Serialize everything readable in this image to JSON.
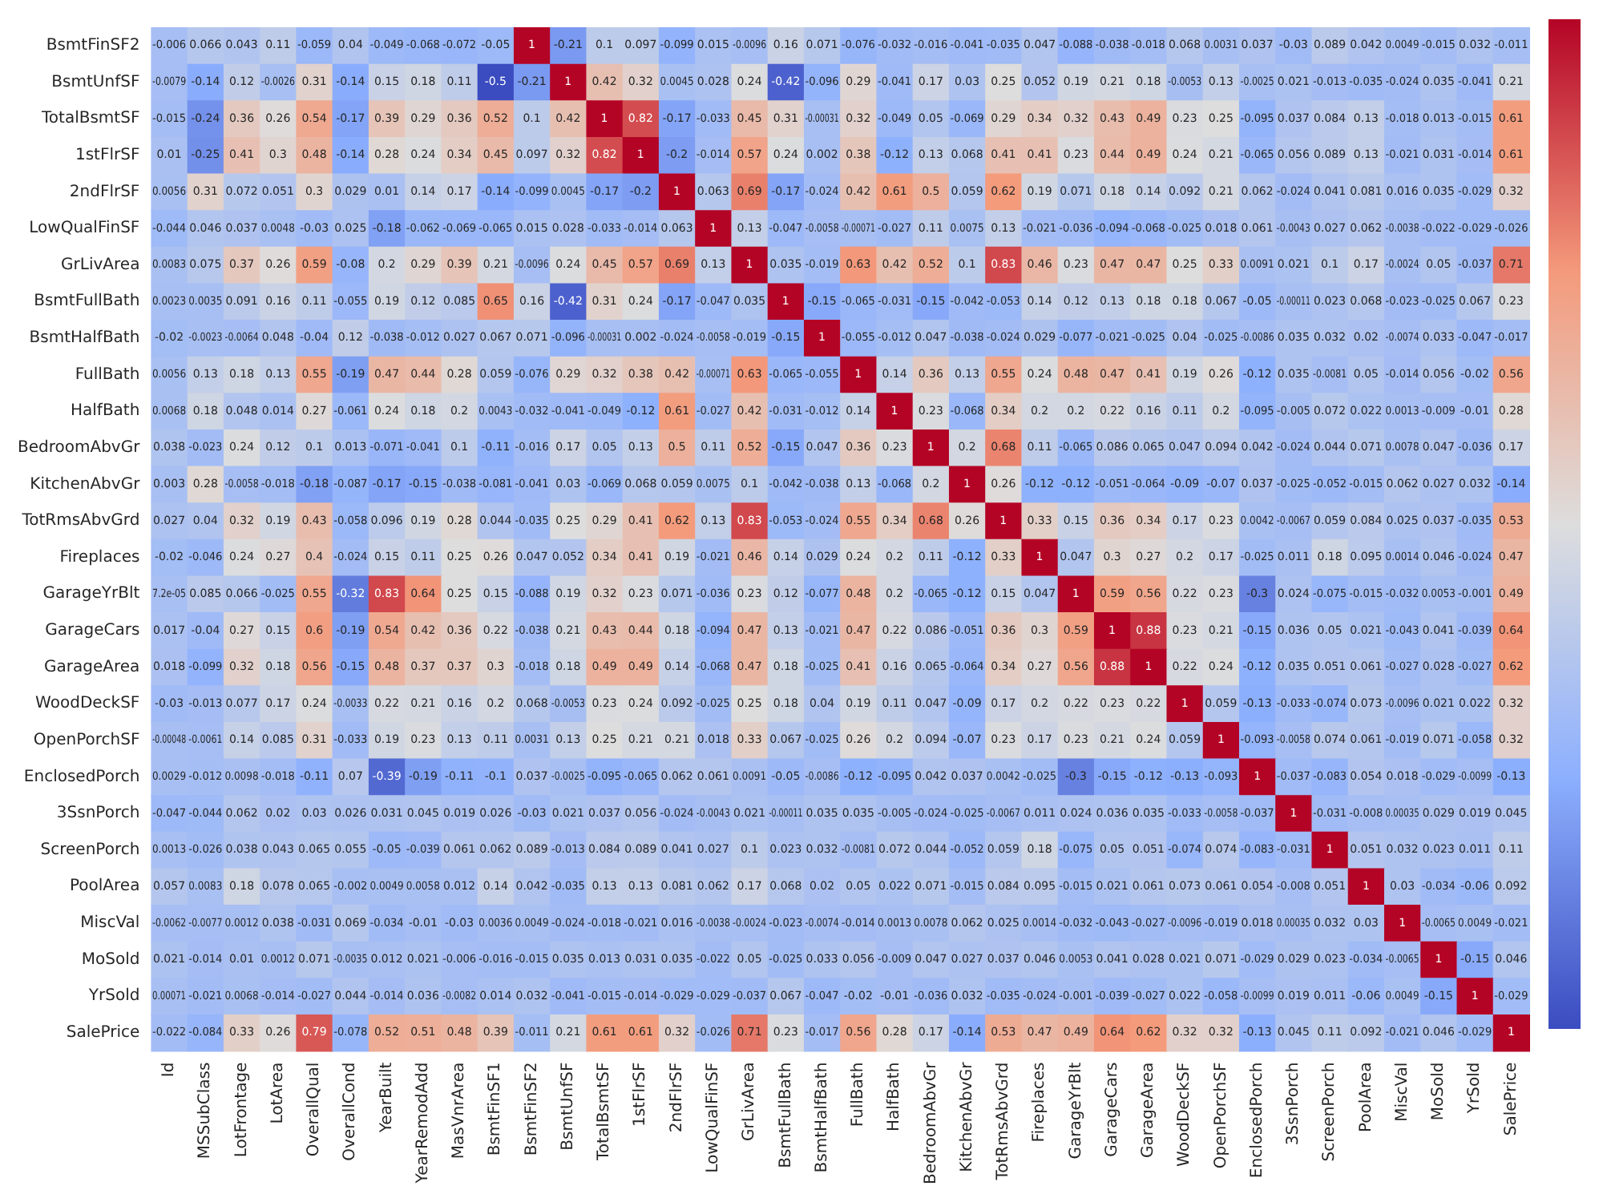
{
  "chart_data": {
    "type": "heatmap",
    "data_labels": true,
    "categories": [
      "Id",
      "MSSubClass",
      "LotFrontage",
      "LotArea",
      "OverallQual",
      "OverallCond",
      "YearBuilt",
      "YearRemodAdd",
      "MasVnrArea",
      "BsmtFinSF1",
      "BsmtFinSF2",
      "BsmtUnfSF",
      "TotalBsmtSF",
      "1stFlrSF",
      "2ndFlrSF",
      "LowQualFinSF",
      "GrLivArea",
      "BsmtFullBath",
      "BsmtHalfBath",
      "FullBath",
      "HalfBath",
      "BedroomAbvGr",
      "KitchenAbvGr",
      "TotRmsAbvGrd",
      "Fireplaces",
      "GarageYrBlt",
      "GarageCars",
      "GarageArea",
      "WoodDeckSF",
      "OpenPorchSF",
      "EnclosedPorch",
      "3SsnPorch",
      "ScreenPorch",
      "PoolArea",
      "MiscVal",
      "MoSold",
      "YrSold",
      "SalePrice"
    ],
    "y_categories": [
      "BsmtFinSF2",
      "BsmtUnfSF",
      "TotalBsmtSF",
      "1stFlrSF",
      "2ndFlrSF",
      "LowQualFinSF",
      "GrLivArea",
      "BsmtFullBath",
      "BsmtHalfBath",
      "FullBath",
      "HalfBath",
      "BedroomAbvGr",
      "KitchenAbvGr",
      "TotRmsAbvGrd",
      "Fireplaces",
      "GarageYrBlt",
      "GarageCars",
      "GarageArea",
      "WoodDeckSF",
      "OpenPorchSF",
      "EnclosedPorch",
      "3SsnPorch",
      "ScreenPorch",
      "PoolArea",
      "MiscVal",
      "MoSold",
      "YrSold",
      "SalePrice"
    ],
    "cells": [
      [
        -0.006,
        0.066,
        0.043,
        0.11,
        -0.059,
        0.04,
        -0.049,
        -0.068,
        -0.072,
        -0.05,
        1,
        -0.21,
        0.1,
        0.097,
        -0.099,
        0.015,
        -0.0096,
        0.16,
        0.071,
        -0.076,
        -0.032,
        -0.016,
        -0.041,
        -0.035,
        0.047,
        -0.088,
        -0.038,
        -0.018,
        0.068,
        0.0031,
        0.037,
        -0.03,
        0.089,
        0.042,
        0.0049,
        -0.015,
        0.032,
        -0.011
      ],
      [
        -0.0079,
        -0.14,
        0.12,
        -0.0026,
        0.31,
        -0.14,
        0.15,
        0.18,
        0.11,
        -0.5,
        -0.21,
        1,
        0.42,
        0.32,
        0.0045,
        0.028,
        0.24,
        -0.42,
        -0.096,
        0.29,
        -0.041,
        0.17,
        0.03,
        0.25,
        0.052,
        0.19,
        0.21,
        0.18,
        -0.0053,
        0.13,
        -0.0025,
        0.021,
        -0.013,
        -0.035,
        -0.024,
        0.035,
        -0.041,
        0.21
      ],
      [
        -0.015,
        -0.24,
        0.36,
        0.26,
        0.54,
        -0.17,
        0.39,
        0.29,
        0.36,
        0.52,
        0.1,
        0.42,
        1,
        0.82,
        -0.17,
        -0.033,
        0.45,
        0.31,
        -0.00031,
        0.32,
        -0.049,
        0.05,
        -0.069,
        0.29,
        0.34,
        0.32,
        0.43,
        0.49,
        0.23,
        0.25,
        -0.095,
        0.037,
        0.084,
        0.13,
        -0.018,
        0.013,
        -0.015,
        0.61
      ],
      [
        0.01,
        -0.25,
        0.41,
        0.3,
        0.48,
        -0.14,
        0.28,
        0.24,
        0.34,
        0.45,
        0.097,
        0.32,
        0.82,
        1,
        -0.2,
        -0.014,
        0.57,
        0.24,
        0.002,
        0.38,
        -0.12,
        0.13,
        0.068,
        0.41,
        0.41,
        0.23,
        0.44,
        0.49,
        0.24,
        0.21,
        -0.065,
        0.056,
        0.089,
        0.13,
        -0.021,
        0.031,
        -0.014,
        0.61
      ],
      [
        0.0056,
        0.31,
        0.072,
        0.051,
        0.3,
        0.029,
        0.01,
        0.14,
        0.17,
        -0.14,
        -0.099,
        0.0045,
        -0.17,
        -0.2,
        1,
        0.063,
        0.69,
        -0.17,
        -0.024,
        0.42,
        0.61,
        0.5,
        0.059,
        0.62,
        0.19,
        0.071,
        0.18,
        0.14,
        0.092,
        0.21,
        0.062,
        -0.024,
        0.041,
        0.081,
        0.016,
        0.035,
        -0.029,
        0.32
      ],
      [
        -0.044,
        0.046,
        0.037,
        0.0048,
        -0.03,
        0.025,
        -0.18,
        -0.062,
        -0.069,
        -0.065,
        0.015,
        0.028,
        -0.033,
        -0.014,
        0.063,
        1,
        0.13,
        -0.047,
        -0.0058,
        -0.00071,
        -0.027,
        0.11,
        0.0075,
        0.13,
        -0.021,
        -0.036,
        -0.094,
        -0.068,
        -0.025,
        0.018,
        0.061,
        -0.0043,
        0.027,
        0.062,
        -0.0038,
        -0.022,
        -0.029,
        -0.026
      ],
      [
        0.0083,
        0.075,
        0.37,
        0.26,
        0.59,
        -0.08,
        0.2,
        0.29,
        0.39,
        0.21,
        -0.0096,
        0.24,
        0.45,
        0.57,
        0.69,
        0.13,
        1,
        0.035,
        -0.019,
        0.63,
        0.42,
        0.52,
        0.1,
        0.83,
        0.46,
        0.23,
        0.47,
        0.47,
        0.25,
        0.33,
        0.0091,
        0.021,
        0.1,
        0.17,
        -0.0024,
        0.05,
        -0.037,
        0.71
      ],
      [
        0.0023,
        0.0035,
        0.091,
        0.16,
        0.11,
        -0.055,
        0.19,
        0.12,
        0.085,
        0.65,
        0.16,
        -0.42,
        0.31,
        0.24,
        -0.17,
        -0.047,
        0.035,
        1,
        -0.15,
        -0.065,
        -0.031,
        -0.15,
        -0.042,
        -0.053,
        0.14,
        0.12,
        0.13,
        0.18,
        0.18,
        0.067,
        -0.05,
        -0.00011,
        0.023,
        0.068,
        -0.023,
        -0.025,
        0.067,
        0.23
      ],
      [
        -0.02,
        -0.0023,
        -0.0064,
        0.048,
        -0.04,
        0.12,
        -0.038,
        -0.012,
        0.027,
        0.067,
        0.071,
        -0.096,
        -0.00031,
        0.002,
        -0.024,
        -0.0058,
        -0.019,
        -0.15,
        1,
        -0.055,
        -0.012,
        0.047,
        -0.038,
        -0.024,
        0.029,
        -0.077,
        -0.021,
        -0.025,
        0.04,
        -0.025,
        -0.0086,
        0.035,
        0.032,
        0.02,
        -0.0074,
        0.033,
        -0.047,
        -0.017
      ],
      [
        0.0056,
        0.13,
        0.18,
        0.13,
        0.55,
        -0.19,
        0.47,
        0.44,
        0.28,
        0.059,
        -0.076,
        0.29,
        0.32,
        0.38,
        0.42,
        -0.00071,
        0.63,
        -0.065,
        -0.055,
        1,
        0.14,
        0.36,
        0.13,
        0.55,
        0.24,
        0.48,
        0.47,
        0.41,
        0.19,
        0.26,
        -0.12,
        0.035,
        -0.0081,
        0.05,
        -0.014,
        0.056,
        -0.02,
        0.56
      ],
      [
        0.0068,
        0.18,
        0.048,
        0.014,
        0.27,
        -0.061,
        0.24,
        0.18,
        0.2,
        0.0043,
        -0.032,
        -0.041,
        -0.049,
        -0.12,
        0.61,
        -0.027,
        0.42,
        -0.031,
        -0.012,
        0.14,
        1,
        0.23,
        -0.068,
        0.34,
        0.2,
        0.2,
        0.22,
        0.16,
        0.11,
        0.2,
        -0.095,
        -0.005,
        0.072,
        0.022,
        0.0013,
        -0.009,
        -0.01,
        0.28
      ],
      [
        0.038,
        -0.023,
        0.24,
        0.12,
        0.1,
        0.013,
        -0.071,
        -0.041,
        0.1,
        -0.11,
        -0.016,
        0.17,
        0.05,
        0.13,
        0.5,
        0.11,
        0.52,
        -0.15,
        0.047,
        0.36,
        0.23,
        1,
        0.2,
        0.68,
        0.11,
        -0.065,
        0.086,
        0.065,
        0.047,
        0.094,
        0.042,
        -0.024,
        0.044,
        0.071,
        0.0078,
        0.047,
        -0.036,
        0.17
      ],
      [
        0.003,
        0.28,
        -0.0058,
        -0.018,
        -0.18,
        -0.087,
        -0.17,
        -0.15,
        -0.038,
        -0.081,
        -0.041,
        0.03,
        -0.069,
        0.068,
        0.059,
        0.0075,
        0.1,
        -0.042,
        -0.038,
        0.13,
        -0.068,
        0.2,
        1,
        0.26,
        -0.12,
        -0.12,
        -0.051,
        -0.064,
        -0.09,
        -0.07,
        0.037,
        -0.025,
        -0.052,
        -0.015,
        0.062,
        0.027,
        0.032,
        -0.14
      ],
      [
        0.027,
        0.04,
        0.32,
        0.19,
        0.43,
        -0.058,
        0.096,
        0.19,
        0.28,
        0.044,
        -0.035,
        0.25,
        0.29,
        0.41,
        0.62,
        0.13,
        0.83,
        -0.053,
        -0.024,
        0.55,
        0.34,
        0.68,
        0.26,
        1,
        0.33,
        0.15,
        0.36,
        0.34,
        0.17,
        0.23,
        0.0042,
        -0.0067,
        0.059,
        0.084,
        0.025,
        0.037,
        -0.035,
        0.53
      ],
      [
        -0.02,
        -0.046,
        0.24,
        0.27,
        0.4,
        -0.024,
        0.15,
        0.11,
        0.25,
        0.26,
        0.047,
        0.052,
        0.34,
        0.41,
        0.19,
        -0.021,
        0.46,
        0.14,
        0.029,
        0.24,
        0.2,
        0.11,
        -0.12,
        0.33,
        1,
        0.047,
        0.3,
        0.27,
        0.2,
        0.17,
        -0.025,
        0.011,
        0.18,
        0.095,
        0.0014,
        0.046,
        -0.024,
        0.47
      ],
      [
        7.2e-05,
        0.085,
        0.066,
        -0.025,
        0.55,
        -0.32,
        0.83,
        0.64,
        0.25,
        0.15,
        -0.088,
        0.19,
        0.32,
        0.23,
        0.071,
        -0.036,
        0.23,
        0.12,
        -0.077,
        0.48,
        0.2,
        -0.065,
        -0.12,
        0.15,
        0.047,
        1,
        0.59,
        0.56,
        0.22,
        0.23,
        -0.3,
        0.024,
        -0.075,
        -0.015,
        -0.032,
        0.0053,
        -0.001,
        0.49
      ],
      [
        0.017,
        -0.04,
        0.27,
        0.15,
        0.6,
        -0.19,
        0.54,
        0.42,
        0.36,
        0.22,
        -0.038,
        0.21,
        0.43,
        0.44,
        0.18,
        -0.094,
        0.47,
        0.13,
        -0.021,
        0.47,
        0.22,
        0.086,
        -0.051,
        0.36,
        0.3,
        0.59,
        1,
        0.88,
        0.23,
        0.21,
        -0.15,
        0.036,
        0.05,
        0.021,
        -0.043,
        0.041,
        -0.039,
        0.64
      ],
      [
        0.018,
        -0.099,
        0.32,
        0.18,
        0.56,
        -0.15,
        0.48,
        0.37,
        0.37,
        0.3,
        -0.018,
        0.18,
        0.49,
        0.49,
        0.14,
        -0.068,
        0.47,
        0.18,
        -0.025,
        0.41,
        0.16,
        0.065,
        -0.064,
        0.34,
        0.27,
        0.56,
        0.88,
        1,
        0.22,
        0.24,
        -0.12,
        0.035,
        0.051,
        0.061,
        -0.027,
        0.028,
        -0.027,
        0.62
      ],
      [
        -0.03,
        -0.013,
        0.077,
        0.17,
        0.24,
        -0.0033,
        0.22,
        0.21,
        0.16,
        0.2,
        0.068,
        -0.0053,
        0.23,
        0.24,
        0.092,
        -0.025,
        0.25,
        0.18,
        0.04,
        0.19,
        0.11,
        0.047,
        -0.09,
        0.17,
        0.2,
        0.22,
        0.23,
        0.22,
        1,
        0.059,
        -0.13,
        -0.033,
        -0.074,
        0.073,
        -0.0096,
        0.021,
        0.022,
        0.32
      ],
      [
        -0.00048,
        -0.0061,
        0.14,
        0.085,
        0.31,
        -0.033,
        0.19,
        0.23,
        0.13,
        0.11,
        0.0031,
        0.13,
        0.25,
        0.21,
        0.21,
        0.018,
        0.33,
        0.067,
        -0.025,
        0.26,
        0.2,
        0.094,
        -0.07,
        0.23,
        0.17,
        0.23,
        0.21,
        0.24,
        0.059,
        1,
        -0.093,
        -0.0058,
        0.074,
        0.061,
        -0.019,
        0.071,
        -0.058,
        0.32
      ],
      [
        0.0029,
        -0.012,
        0.0098,
        -0.018,
        -0.11,
        0.07,
        -0.39,
        -0.19,
        -0.11,
        -0.1,
        0.037,
        -0.0025,
        -0.095,
        -0.065,
        0.062,
        0.061,
        0.0091,
        -0.05,
        -0.0086,
        -0.12,
        -0.095,
        0.042,
        0.037,
        0.0042,
        -0.025,
        -0.3,
        -0.15,
        -0.12,
        -0.13,
        -0.093,
        1,
        -0.037,
        -0.083,
        0.054,
        0.018,
        -0.029,
        -0.0099,
        -0.13
      ],
      [
        -0.047,
        -0.044,
        0.062,
        0.02,
        0.03,
        0.026,
        0.031,
        0.045,
        0.019,
        0.026,
        -0.03,
        0.021,
        0.037,
        0.056,
        -0.024,
        -0.0043,
        0.021,
        -0.00011,
        0.035,
        0.035,
        -0.005,
        -0.024,
        -0.025,
        -0.0067,
        0.011,
        0.024,
        0.036,
        0.035,
        -0.033,
        -0.0058,
        -0.037,
        1,
        -0.031,
        -0.008,
        0.00035,
        0.029,
        0.019,
        0.045
      ],
      [
        0.0013,
        -0.026,
        0.038,
        0.043,
        0.065,
        0.055,
        -0.05,
        -0.039,
        0.061,
        0.062,
        0.089,
        -0.013,
        0.084,
        0.089,
        0.041,
        0.027,
        0.1,
        0.023,
        0.032,
        -0.0081,
        0.072,
        0.044,
        -0.052,
        0.059,
        0.18,
        -0.075,
        0.05,
        0.051,
        -0.074,
        0.074,
        -0.083,
        -0.031,
        1,
        0.051,
        0.032,
        0.023,
        0.011,
        0.11
      ],
      [
        0.057,
        0.0083,
        0.18,
        0.078,
        0.065,
        -0.002,
        0.0049,
        0.0058,
        0.012,
        0.14,
        0.042,
        -0.035,
        0.13,
        0.13,
        0.081,
        0.062,
        0.17,
        0.068,
        0.02,
        0.05,
        0.022,
        0.071,
        -0.015,
        0.084,
        0.095,
        -0.015,
        0.021,
        0.061,
        0.073,
        0.061,
        0.054,
        -0.008,
        0.051,
        1,
        0.03,
        -0.034,
        -0.06,
        0.092
      ],
      [
        -0.0062,
        -0.0077,
        0.0012,
        0.038,
        -0.031,
        0.069,
        -0.034,
        -0.01,
        -0.03,
        0.0036,
        0.0049,
        -0.024,
        -0.018,
        -0.021,
        0.016,
        -0.0038,
        -0.0024,
        -0.023,
        -0.0074,
        -0.014,
        0.0013,
        0.0078,
        0.062,
        0.025,
        0.0014,
        -0.032,
        -0.043,
        -0.027,
        -0.0096,
        -0.019,
        0.018,
        0.00035,
        0.032,
        0.03,
        1,
        -0.0065,
        0.0049,
        -0.021
      ],
      [
        0.021,
        -0.014,
        0.01,
        0.0012,
        0.071,
        -0.0035,
        0.012,
        0.021,
        -0.006,
        -0.016,
        -0.015,
        0.035,
        0.013,
        0.031,
        0.035,
        -0.022,
        0.05,
        -0.025,
        0.033,
        0.056,
        -0.009,
        0.047,
        0.027,
        0.037,
        0.046,
        0.0053,
        0.041,
        0.028,
        0.021,
        0.071,
        -0.029,
        0.029,
        0.023,
        -0.034,
        -0.0065,
        1,
        -0.15,
        0.046
      ],
      [
        0.00071,
        -0.021,
        0.0068,
        -0.014,
        -0.027,
        0.044,
        -0.014,
        0.036,
        -0.0082,
        0.014,
        0.032,
        -0.041,
        -0.015,
        -0.014,
        -0.029,
        -0.029,
        -0.037,
        0.067,
        -0.047,
        -0.02,
        -0.01,
        -0.036,
        0.032,
        -0.035,
        -0.024,
        -0.001,
        -0.039,
        -0.027,
        0.022,
        -0.058,
        -0.0099,
        0.019,
        0.011,
        -0.06,
        0.0049,
        -0.15,
        1,
        -0.029
      ],
      [
        -0.022,
        -0.084,
        0.33,
        0.26,
        0.79,
        -0.078,
        0.52,
        0.51,
        0.48,
        0.39,
        -0.011,
        0.21,
        0.61,
        0.61,
        0.32,
        -0.026,
        0.71,
        0.23,
        -0.017,
        0.56,
        0.28,
        0.17,
        -0.14,
        0.53,
        0.47,
        0.49,
        0.64,
        0.62,
        0.32,
        0.32,
        -0.13,
        0.045,
        0.11,
        0.092,
        -0.021,
        0.046,
        -0.029,
        1
      ]
    ]
  }
}
